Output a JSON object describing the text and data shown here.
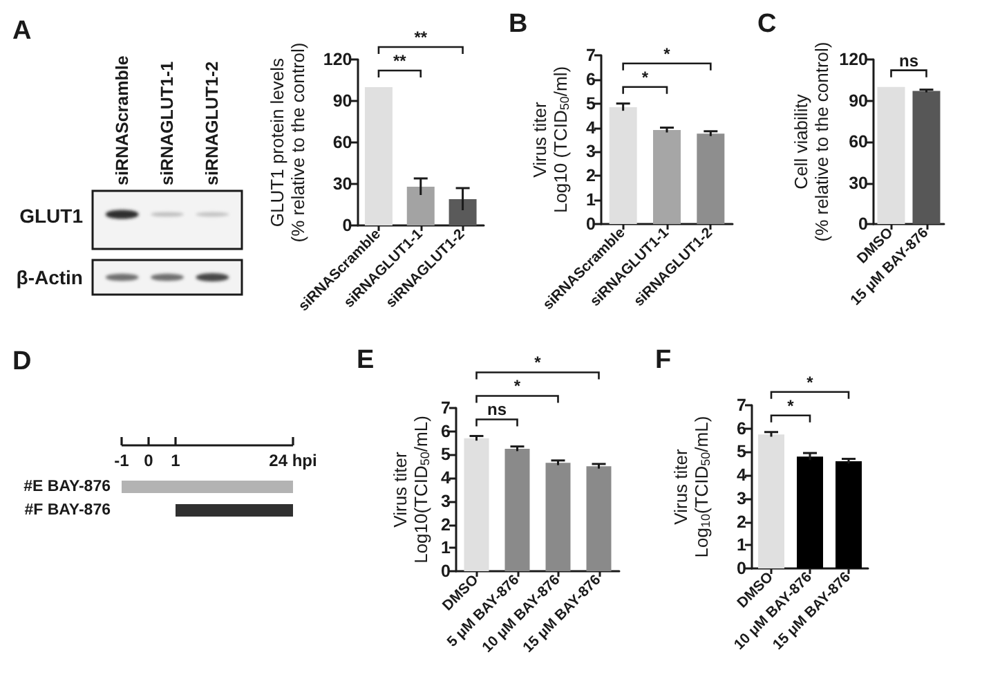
{
  "chart_data": [
    {
      "type": "other",
      "title": "A",
      "categories": [
        "siRNAScramble",
        "siRNAGLUT1-1",
        "siRNAGLUT1-2"
      ],
      "y_categories": [
        "GLUT1",
        "β-Actin"
      ]
    },
    {
      "type": "bar",
      "ylabel": "GLUT1 protein levels\n(% relative to the control)",
      "categories": [
        "siRNAScramble",
        "siRNAGLUT1-1",
        "siRNAGLUT1-2"
      ],
      "values": [
        100,
        28,
        19
      ],
      "errors": [
        null,
        6,
        8
      ],
      "colors": [
        "#e0e0e0",
        "#a3a3a3",
        "#5a5a5a"
      ],
      "ylim": [
        0,
        120
      ],
      "yticks": [
        0,
        30,
        60,
        90,
        120
      ],
      "annotations": [
        "**",
        "**"
      ]
    },
    {
      "type": "bar",
      "title": "B",
      "ylabel": "Virus titer\nLog10 (TCID$_{50}$/ml)",
      "categories": [
        "siRNAScramble",
        "siRNAGLUT1-1",
        "siRNAGLUT1-2"
      ],
      "values": [
        4.85,
        3.9,
        3.75
      ],
      "errors": [
        0.15,
        0.1,
        0.1
      ],
      "colors": [
        "#e0e0e0",
        "#a6a6a6",
        "#8e8e8e"
      ],
      "ylim": [
        0,
        7
      ],
      "yticks": [
        0,
        1,
        2,
        3,
        4,
        5,
        6,
        7
      ],
      "annotations": [
        "*",
        "*"
      ]
    },
    {
      "type": "bar",
      "title": "C",
      "ylabel": "Cell viability\n(% relative to the control)",
      "categories": [
        "DMSO",
        "15 μM BAY-876"
      ],
      "values": [
        100,
        97
      ],
      "errors": [
        null,
        1
      ],
      "colors": [
        "#e0e0e0",
        "#575757"
      ],
      "ylim": [
        0,
        120
      ],
      "yticks": [
        0,
        30,
        60,
        90,
        120
      ],
      "annotations": [
        "ns"
      ]
    },
    {
      "type": "other",
      "title": "D",
      "annotations": [
        "-1",
        "0",
        "1",
        "24 hpi"
      ],
      "categories": [
        "#E BAY-876",
        "#F BAY-876"
      ],
      "colors": [
        "#b3b3b3",
        "#303030"
      ]
    },
    {
      "type": "bar",
      "title": "E",
      "ylabel": "Virus titer\nLog10(TCID$_{50}$/mL)",
      "categories": [
        "DMSO",
        "5 μM BAY-876",
        "10 μM BAY-876",
        "15 μM BAY-876"
      ],
      "values": [
        5.7,
        5.25,
        4.65,
        4.5
      ],
      "errors": [
        0.1,
        0.1,
        0.1,
        0.1
      ],
      "colors": [
        "#e0e0e0",
        "#8a8a8a",
        "#8a8a8a",
        "#8a8a8a"
      ],
      "ylim": [
        0,
        7
      ],
      "yticks": [
        0,
        1,
        2,
        3,
        4,
        5,
        6,
        7
      ],
      "annotations": [
        "ns",
        "*",
        "*"
      ]
    },
    {
      "type": "bar",
      "title": "F",
      "ylabel": "Virus titer\nLog$_{10}$(TCID$_{50}$/mL)",
      "categories": [
        "DMSO",
        "10 μM BAY-876",
        "15 μM BAY-876"
      ],
      "values": [
        5.75,
        4.8,
        4.6
      ],
      "errors": [
        0.1,
        0.15,
        0.1
      ],
      "colors": [
        "#e0e0e0",
        "#000000",
        "#000000"
      ],
      "ylim": [
        0,
        7
      ],
      "yticks": [
        0,
        1,
        2,
        3,
        4,
        5,
        6,
        7
      ],
      "annotations": [
        "*",
        "*"
      ]
    }
  ]
}
